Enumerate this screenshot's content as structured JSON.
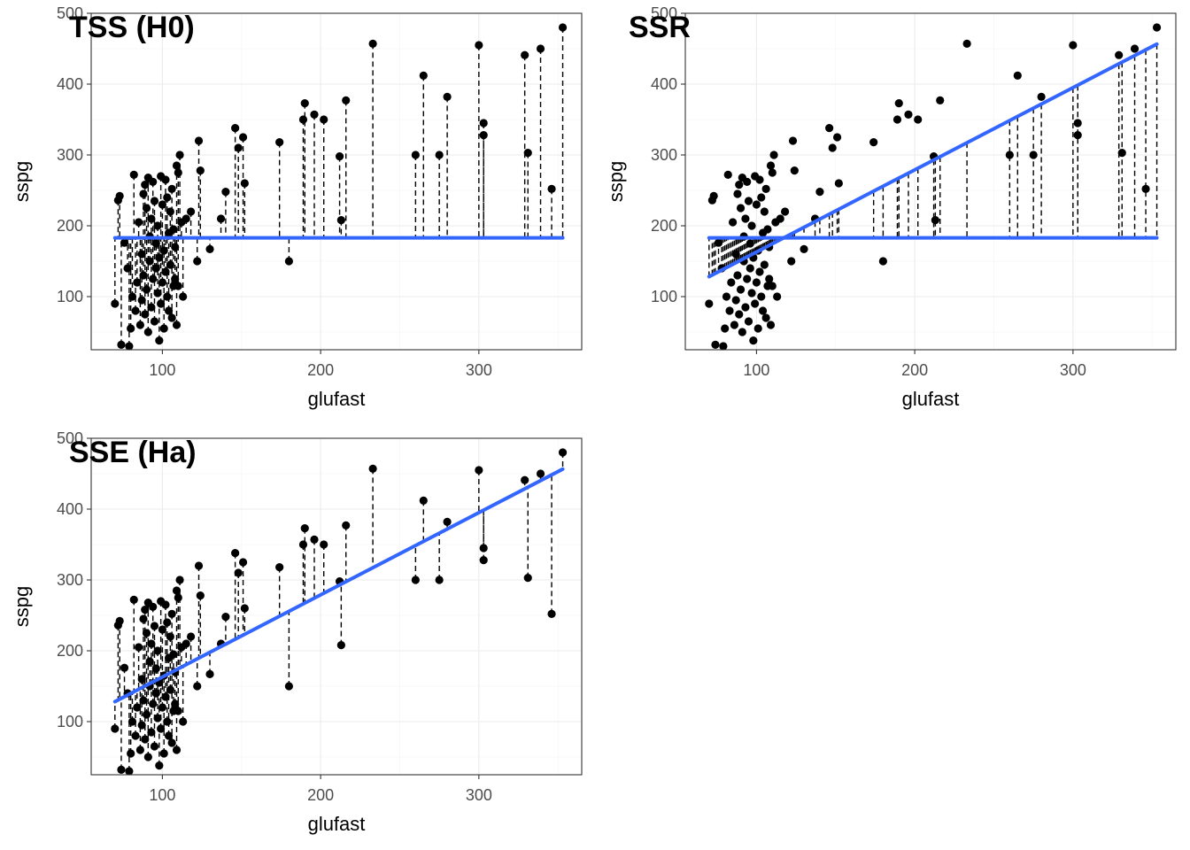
{
  "colors": {
    "fit_line": "#3366ff",
    "points": "#000000",
    "segments": "#000000",
    "grid": "#ebebeb"
  },
  "chart_data": [
    {
      "type": "scatter",
      "title": "TSS (H0)",
      "xlabel": "glufast",
      "ylabel": "sspg",
      "xlim": [
        55,
        365
      ],
      "ylim": [
        25,
        500
      ],
      "xticks": [
        100,
        200,
        300
      ],
      "yticks": [
        100,
        200,
        300,
        400,
        500
      ],
      "grid": true,
      "legend": "none",
      "lines": [
        "mean"
      ],
      "segments": [
        "point_to_mean"
      ]
    },
    {
      "type": "scatter",
      "title": "SSR",
      "xlabel": "glufast",
      "ylabel": "sspg",
      "xlim": [
        55,
        365
      ],
      "ylim": [
        25,
        500
      ],
      "xticks": [
        100,
        200,
        300
      ],
      "yticks": [
        100,
        200,
        300,
        400,
        500
      ],
      "grid": true,
      "legend": "none",
      "lines": [
        "mean",
        "fit"
      ],
      "segments": [
        "fit_to_mean"
      ]
    },
    {
      "type": "scatter",
      "title": "SSE (Ha)",
      "xlabel": "glufast",
      "ylabel": "sspg",
      "xlim": [
        55,
        365
      ],
      "ylim": [
        25,
        500
      ],
      "xticks": [
        100,
        200,
        300
      ],
      "yticks": [
        100,
        200,
        300,
        400,
        500
      ],
      "grid": true,
      "legend": "none",
      "lines": [
        "fit"
      ],
      "segments": [
        "point_to_fit"
      ]
    }
  ],
  "model": {
    "mean_sspg": 183,
    "fit_intercept": 47,
    "fit_slope": 1.16,
    "x_range": [
      70,
      353
    ]
  },
  "points": [
    [
      70,
      90
    ],
    [
      72,
      236
    ],
    [
      73,
      242
    ],
    [
      74,
      32
    ],
    [
      76,
      176
    ],
    [
      78,
      140
    ],
    [
      79,
      30
    ],
    [
      80,
      55
    ],
    [
      81,
      100
    ],
    [
      82,
      272
    ],
    [
      83,
      80
    ],
    [
      84,
      120
    ],
    [
      85,
      205
    ],
    [
      86,
      60
    ],
    [
      87,
      160
    ],
    [
      87,
      95
    ],
    [
      88,
      245
    ],
    [
      88,
      130
    ],
    [
      89,
      258
    ],
    [
      89,
      75
    ],
    [
      90,
      225
    ],
    [
      90,
      110
    ],
    [
      91,
      268
    ],
    [
      91,
      50
    ],
    [
      92,
      185
    ],
    [
      92,
      150
    ],
    [
      93,
      210
    ],
    [
      93,
      85
    ],
    [
      94,
      262
    ],
    [
      94,
      125
    ],
    [
      95,
      235
    ],
    [
      95,
      65
    ],
    [
      96,
      175
    ],
    [
      96,
      140
    ],
    [
      97,
      200
    ],
    [
      97,
      105
    ],
    [
      98,
      155
    ],
    [
      98,
      38
    ],
    [
      99,
      270
    ],
    [
      99,
      90
    ],
    [
      100,
      230
    ],
    [
      100,
      120
    ],
    [
      101,
      165
    ],
    [
      101,
      55
    ],
    [
      102,
      265
    ],
    [
      102,
      135
    ],
    [
      103,
      240
    ],
    [
      103,
      100
    ],
    [
      104,
      190
    ],
    [
      104,
      80
    ],
    [
      105,
      220
    ],
    [
      105,
      145
    ],
    [
      106,
      252
    ],
    [
      106,
      70
    ],
    [
      107,
      195
    ],
    [
      107,
      115
    ],
    [
      108,
      170
    ],
    [
      108,
      125
    ],
    [
      109,
      285
    ],
    [
      109,
      60
    ],
    [
      110,
      275
    ],
    [
      110,
      115
    ],
    [
      111,
      300
    ],
    [
      112,
      205
    ],
    [
      113,
      100
    ],
    [
      115,
      210
    ],
    [
      118,
      220
    ],
    [
      122,
      150
    ],
    [
      123,
      320
    ],
    [
      124,
      278
    ],
    [
      130,
      167
    ],
    [
      137,
      210
    ],
    [
      140,
      248
    ],
    [
      146,
      338
    ],
    [
      148,
      310
    ],
    [
      151,
      325
    ],
    [
      152,
      260
    ],
    [
      174,
      318
    ],
    [
      180,
      150
    ],
    [
      189,
      350
    ],
    [
      190,
      373
    ],
    [
      196,
      357
    ],
    [
      202,
      350
    ],
    [
      212,
      298
    ],
    [
      213,
      208
    ],
    [
      216,
      377
    ],
    [
      233,
      457
    ],
    [
      260,
      300
    ],
    [
      265,
      412
    ],
    [
      275,
      300
    ],
    [
      280,
      382
    ],
    [
      300,
      455
    ],
    [
      303,
      345
    ],
    [
      303,
      328
    ],
    [
      329,
      441
    ],
    [
      331,
      303
    ],
    [
      339,
      450
    ],
    [
      346,
      252
    ],
    [
      353,
      480
    ]
  ]
}
